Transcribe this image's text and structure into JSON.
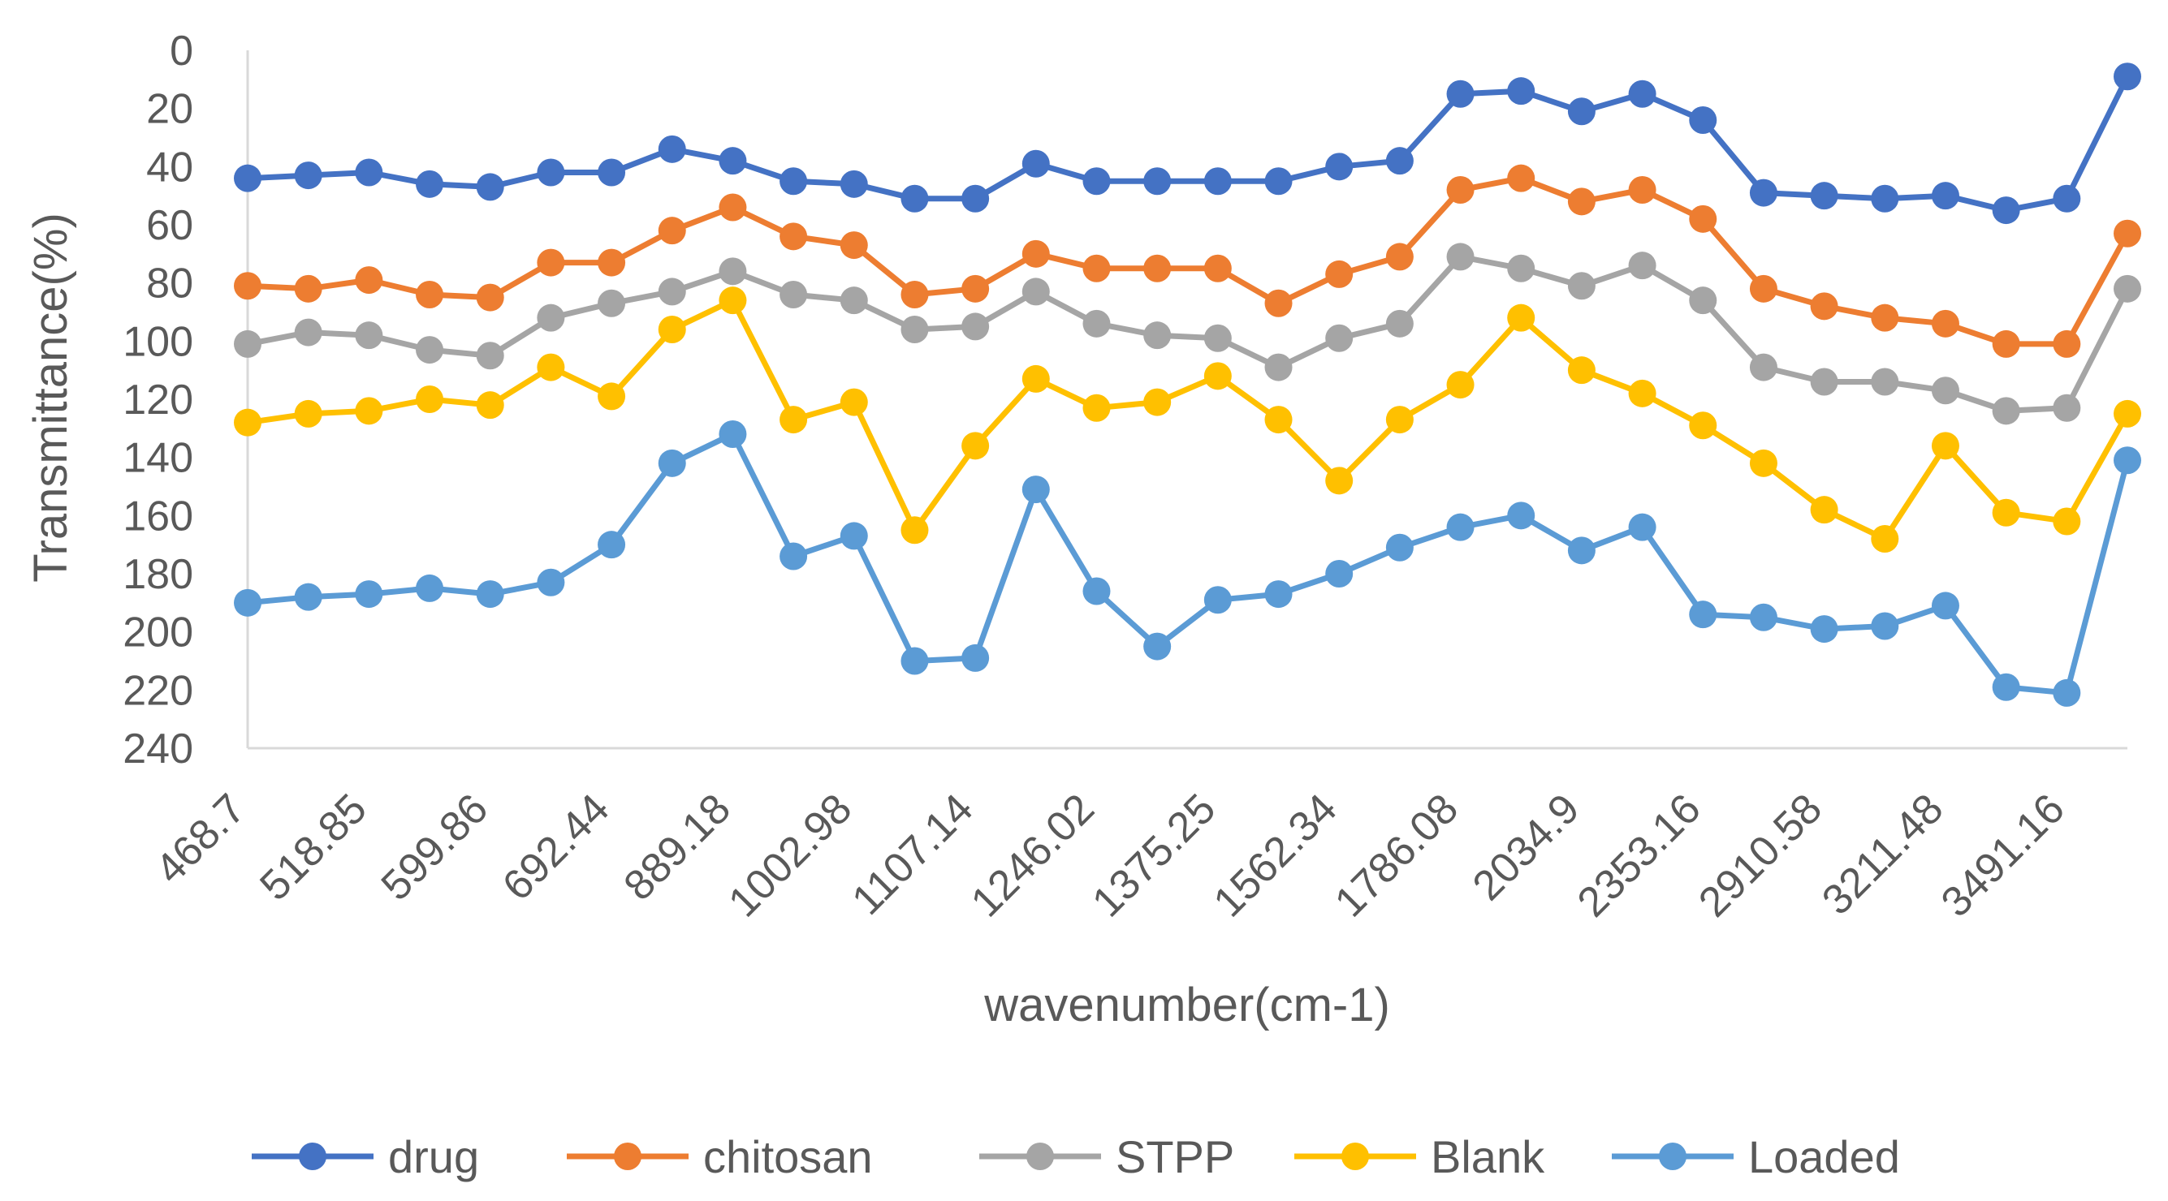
{
  "chart_data": {
    "type": "line",
    "title": "",
    "xlabel": "wavenumber(cm-1)",
    "ylabel": "Transmittance(%)",
    "y_axis_reversed": true,
    "ylim": [
      0,
      240
    ],
    "y_ticks": [
      0,
      20,
      40,
      60,
      80,
      100,
      120,
      140,
      160,
      180,
      200,
      220,
      240
    ],
    "grid": false,
    "legend_position": "bottom",
    "x_point_count": 32,
    "x_labels": [
      {
        "index": 0,
        "label": "468.7"
      },
      {
        "index": 2,
        "label": "518.85"
      },
      {
        "index": 4,
        "label": "599.86"
      },
      {
        "index": 6,
        "label": "692.44"
      },
      {
        "index": 8,
        "label": "889.18"
      },
      {
        "index": 10,
        "label": "1002.98"
      },
      {
        "index": 12,
        "label": "1107.14"
      },
      {
        "index": 14,
        "label": "1246.02"
      },
      {
        "index": 16,
        "label": "1375.25"
      },
      {
        "index": 18,
        "label": "1562.34"
      },
      {
        "index": 20,
        "label": "1786.08"
      },
      {
        "index": 22,
        "label": "2034.9"
      },
      {
        "index": 24,
        "label": "2353.16"
      },
      {
        "index": 26,
        "label": "2910.58"
      },
      {
        "index": 28,
        "label": "3211.48"
      },
      {
        "index": 30,
        "label": "3491.16"
      }
    ],
    "series": [
      {
        "name": "drug",
        "color": "#4472C4",
        "values": [
          44,
          43,
          42,
          46,
          47,
          42,
          42,
          34,
          38,
          45,
          46,
          51,
          51,
          39,
          45,
          45,
          45,
          45,
          40,
          38,
          15,
          14,
          21,
          15,
          24,
          49,
          50,
          51,
          50,
          55,
          51,
          9
        ]
      },
      {
        "name": "chitosan",
        "color": "#ED7D31",
        "values": [
          81,
          82,
          79,
          84,
          85,
          73,
          73,
          62,
          54,
          64,
          67,
          84,
          82,
          70,
          75,
          75,
          75,
          87,
          77,
          71,
          48,
          44,
          52,
          48,
          58,
          82,
          88,
          92,
          94,
          101,
          101,
          63
        ]
      },
      {
        "name": "STPP",
        "color": "#A5A5A5",
        "values": [
          101,
          97,
          98,
          103,
          105,
          92,
          87,
          83,
          76,
          84,
          86,
          96,
          95,
          83,
          94,
          98,
          99,
          109,
          99,
          94,
          71,
          75,
          81,
          74,
          86,
          109,
          114,
          114,
          117,
          124,
          123,
          82
        ]
      },
      {
        "name": "Blank",
        "color": "#FFC000",
        "values": [
          128,
          125,
          124,
          120,
          122,
          109,
          119,
          96,
          86,
          127,
          121,
          165,
          136,
          113,
          123,
          121,
          112,
          127,
          148,
          127,
          115,
          92,
          110,
          118,
          129,
          142,
          158,
          168,
          136,
          159,
          162,
          125
        ]
      },
      {
        "name": "Loaded",
        "color": "#5B9BD5",
        "values": [
          190,
          188,
          187,
          185,
          187,
          183,
          170,
          142,
          132,
          174,
          167,
          210,
          209,
          151,
          186,
          205,
          189,
          187,
          180,
          171,
          164,
          160,
          172,
          164,
          194,
          195,
          199,
          198,
          191,
          219,
          221,
          141
        ]
      }
    ]
  }
}
